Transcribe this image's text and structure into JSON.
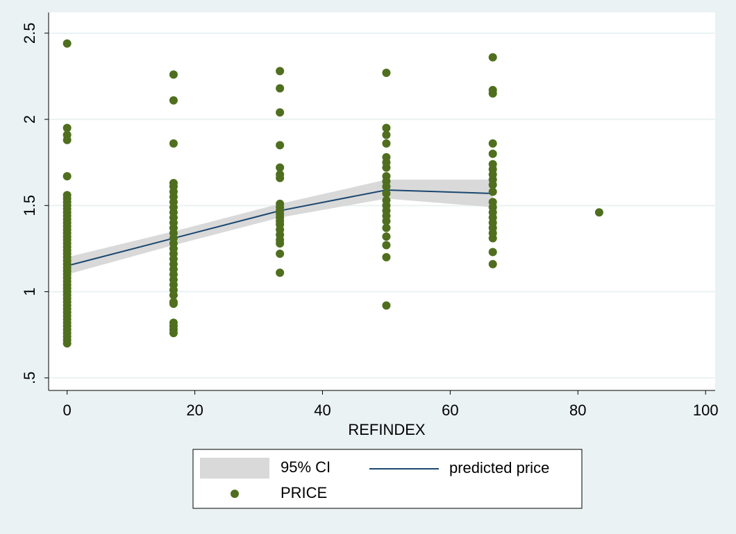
{
  "chart_data": {
    "type": "scatter-fit",
    "x_label": "REFINDEX",
    "xlim": [
      -2.9,
      101.5
    ],
    "xticks": [
      0,
      20,
      40,
      60,
      80,
      100
    ],
    "ylim": [
      0.427,
      2.62
    ],
    "yticks": [
      {
        "value": 0.5,
        "label": ".5"
      },
      1,
      1.5,
      2,
      2.5
    ],
    "grid": true,
    "series": [
      {
        "name": "95% CI",
        "kind": "band",
        "color": "#d9d9d9",
        "x": [
          0,
          16.67,
          33.33,
          50,
          66.67
        ],
        "lower": [
          1.1,
          1.27,
          1.43,
          1.54,
          1.49
        ],
        "upper": [
          1.2,
          1.35,
          1.51,
          1.65,
          1.65
        ]
      },
      {
        "name": "predicted price",
        "kind": "line",
        "color": "#1a476f",
        "x": [
          0,
          16.67,
          33.33,
          50,
          66.67
        ],
        "values": [
          1.15,
          1.31,
          1.47,
          1.59,
          1.57
        ]
      },
      {
        "name": "PRICE",
        "kind": "points",
        "color": "#4f6f1f",
        "x": [
          0,
          0,
          0,
          0,
          0,
          0,
          0,
          0,
          0,
          0,
          0,
          0,
          0,
          0,
          0,
          0,
          0,
          0,
          0,
          0,
          0,
          0,
          0,
          0,
          0,
          0,
          0,
          0,
          0,
          0,
          0,
          0,
          0,
          0,
          0,
          0,
          0,
          0,
          0,
          0,
          0,
          0,
          0,
          0,
          0,
          0,
          0,
          0,
          0,
          16.67,
          16.67,
          16.67,
          16.67,
          16.67,
          16.67,
          16.67,
          16.67,
          16.67,
          16.67,
          16.67,
          16.67,
          16.67,
          16.67,
          16.67,
          16.67,
          16.67,
          16.67,
          16.67,
          16.67,
          16.67,
          16.67,
          16.67,
          16.67,
          16.67,
          16.67,
          16.67,
          16.67,
          16.67,
          16.67,
          16.67,
          16.67,
          33.33,
          33.33,
          33.33,
          33.33,
          33.33,
          33.33,
          33.33,
          33.33,
          33.33,
          33.33,
          33.33,
          33.33,
          33.33,
          33.33,
          33.33,
          33.33,
          33.33,
          33.33,
          33.33,
          33.33,
          50,
          50,
          50,
          50,
          50,
          50,
          50,
          50,
          50,
          50,
          50,
          50,
          50,
          50,
          50,
          50,
          50,
          50,
          50,
          50,
          50,
          66.67,
          66.67,
          66.67,
          66.67,
          66.67,
          66.67,
          66.67,
          66.67,
          66.67,
          66.67,
          66.67,
          66.67,
          66.67,
          66.67,
          66.67,
          66.67,
          66.67,
          66.67,
          66.67,
          66.67,
          66.67,
          83.33
        ],
        "values": [
          2.44,
          1.95,
          1.91,
          1.88,
          1.67,
          1.56,
          1.54,
          1.52,
          1.5,
          1.48,
          1.46,
          1.44,
          1.42,
          1.4,
          1.38,
          1.36,
          1.34,
          1.32,
          1.3,
          1.28,
          1.26,
          1.24,
          1.22,
          1.2,
          1.18,
          1.16,
          1.14,
          1.12,
          1.1,
          1.08,
          1.06,
          1.04,
          1.02,
          1,
          0.98,
          0.96,
          0.94,
          0.92,
          0.9,
          0.88,
          0.86,
          0.84,
          0.82,
          0.8,
          0.78,
          0.76,
          0.74,
          0.72,
          0.7,
          2.26,
          2.11,
          1.86,
          1.63,
          1.61,
          1.58,
          1.55,
          1.52,
          1.49,
          1.46,
          1.43,
          1.4,
          1.37,
          1.34,
          1.31,
          1.28,
          1.25,
          1.22,
          1.19,
          1.16,
          1.13,
          1.1,
          1.07,
          1.04,
          1.01,
          0.98,
          0.94,
          0.93,
          0.82,
          0.8,
          0.78,
          0.76,
          2.28,
          2.18,
          2.04,
          1.85,
          1.72,
          1.68,
          1.66,
          1.51,
          1.49,
          1.47,
          1.45,
          1.43,
          1.41,
          1.39,
          1.36,
          1.33,
          1.3,
          1.28,
          1.22,
          1.11,
          2.27,
          1.95,
          1.91,
          1.86,
          1.78,
          1.75,
          1.72,
          1.67,
          1.64,
          1.61,
          1.57,
          1.53,
          1.5,
          1.47,
          1.44,
          1.41,
          1.37,
          1.32,
          1.27,
          1.2,
          0.92,
          2.36,
          2.17,
          2.15,
          1.86,
          1.8,
          1.74,
          1.71,
          1.68,
          1.65,
          1.62,
          1.58,
          1.52,
          1.49,
          1.46,
          1.43,
          1.4,
          1.37,
          1.34,
          1.31,
          1.23,
          1.16,
          1.46
        ]
      }
    ]
  }
}
